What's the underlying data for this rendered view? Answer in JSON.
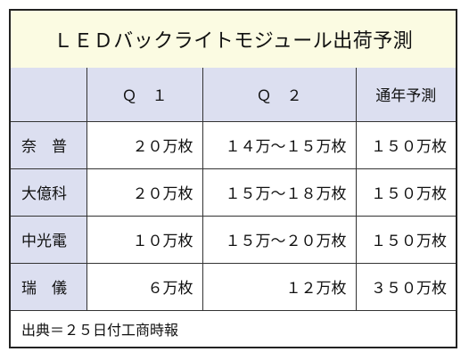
{
  "title": "ＬＥＤバックライトモジュール出荷予測",
  "table": {
    "headers": [
      "",
      "Ｑ　１",
      "Ｑ　２",
      "通年予測"
    ],
    "rows": [
      {
        "company": "奈　普",
        "q1": "２０万枚",
        "q2": "１４万〜１５万枚",
        "annual": "１５０万枚"
      },
      {
        "company": "大億科",
        "q1": "２０万枚",
        "q2": "１５万〜１８万枚",
        "annual": "１５０万枚"
      },
      {
        "company": "中光電",
        "q1": "１０万枚",
        "q2": "１５万〜２０万枚",
        "annual": "１５０万枚"
      },
      {
        "company": "瑞　儀",
        "q1": "６万枚",
        "q2": "１２万枚",
        "annual": "３５０万枚"
      }
    ]
  },
  "source": "出典＝２５日付工商時報"
}
